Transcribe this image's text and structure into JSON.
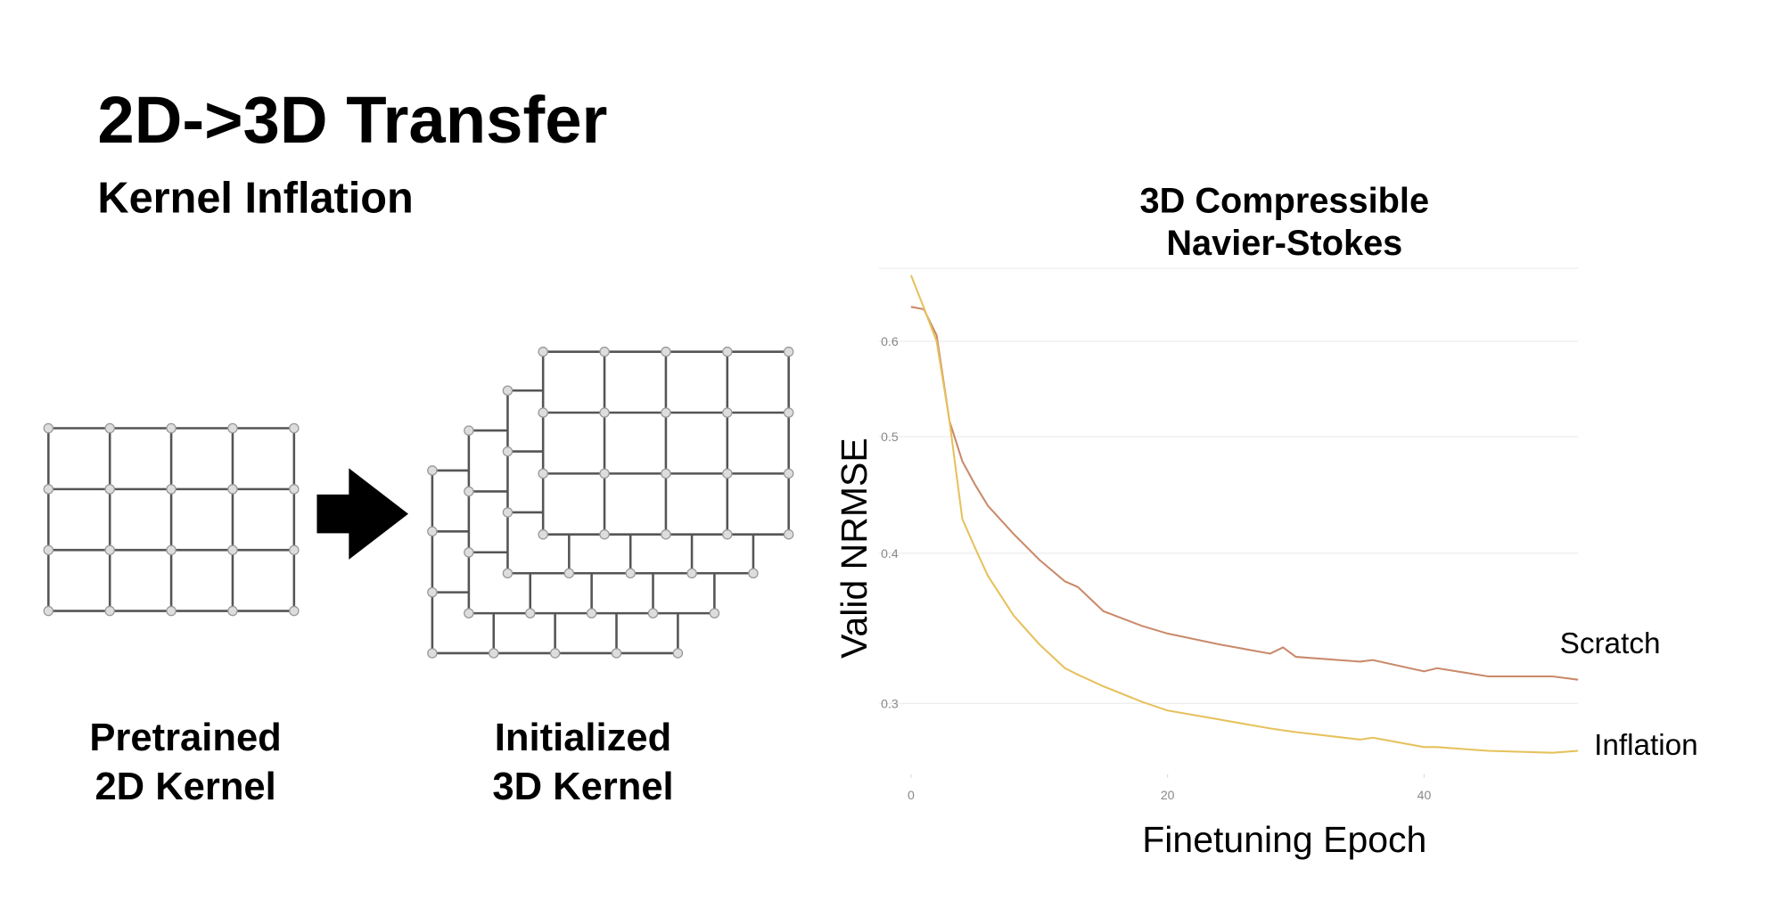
{
  "slide": {
    "title": "2D->3D Transfer",
    "subtitle": "Kernel Inflation"
  },
  "diagram": {
    "left_label": [
      "Pretrained",
      "2D Kernel"
    ],
    "right_label": [
      "Initialized",
      "3D Kernel"
    ]
  },
  "chart_data": {
    "type": "line",
    "title": [
      "3D Compressible",
      "Navier-Stokes"
    ],
    "x_label": "Finetuning Epoch",
    "y_label": "Valid NRMSE",
    "x": [
      0,
      1,
      2,
      3,
      4,
      5,
      6,
      8,
      10,
      12,
      13,
      15,
      18,
      20,
      24,
      28,
      29,
      30,
      35,
      36,
      40,
      41,
      45,
      50,
      52
    ],
    "series": [
      {
        "name": "Scratch",
        "color": "#c98a6a",
        "values": [
          0.641,
          0.638,
          0.607,
          0.515,
          0.477,
          0.456,
          0.438,
          0.415,
          0.395,
          0.379,
          0.375,
          0.358,
          0.348,
          0.343,
          0.336,
          0.33,
          0.334,
          0.328,
          0.325,
          0.326,
          0.319,
          0.321,
          0.316,
          0.316,
          0.314
        ]
      },
      {
        "name": "Inflation",
        "color": "#e6c15c",
        "values": [
          0.681,
          0.64,
          0.6,
          0.515,
          0.427,
          0.404,
          0.383,
          0.355,
          0.336,
          0.321,
          0.317,
          0.31,
          0.301,
          0.296,
          0.291,
          0.286,
          0.285,
          0.284,
          0.28,
          0.281,
          0.276,
          0.276,
          0.274,
          0.273,
          0.274
        ]
      }
    ],
    "xlim": [
      -2.5,
      52
    ],
    "xticks": [
      0,
      20,
      40
    ],
    "ylim": [
      0.262,
      0.69
    ],
    "yticks": [
      0.3,
      0.4,
      0.5,
      0.6
    ],
    "log_y": true,
    "grid": true
  }
}
